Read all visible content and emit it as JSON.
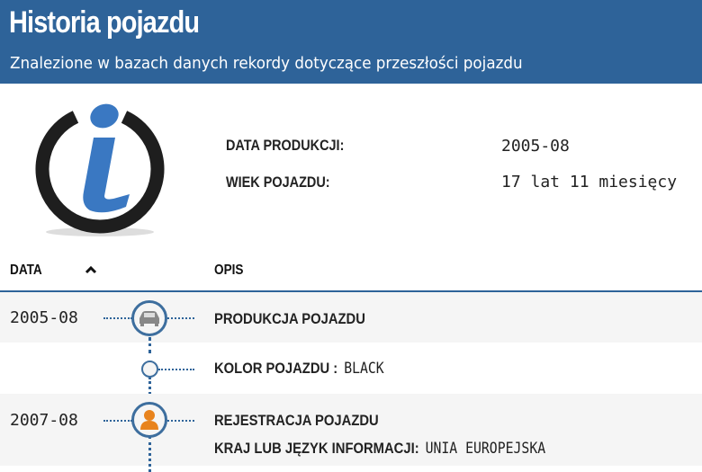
{
  "header": {
    "title": "Historia pojazdu",
    "subtitle": "Znalezione w bazach danych rekordy dotyczące przeszłości pojazdu"
  },
  "summary": [
    {
      "label": "DATA PRODUKCJI:",
      "value": "2005-08"
    },
    {
      "label": "WIEK POJAZDU:",
      "value": "17 lat 11 miesięcy"
    }
  ],
  "table": {
    "columns": [
      "DATA",
      "OPIS"
    ],
    "sort": "ascending",
    "rows": [
      {
        "date": "2005-08",
        "icon": "car-icon",
        "title": "PRODUKCJA POJAZDU"
      },
      {
        "date": "",
        "icon": "dot",
        "label": "KOLOR POJAZDU :",
        "value": "BLACK"
      },
      {
        "date": "2007-08",
        "icon": "person-icon",
        "title": "REJESTRACJA POJAZDU",
        "label": "KRAJ LUB JĘZYK INFORMACJI:",
        "value": "UNIA EUROPEJSKA"
      }
    ]
  },
  "colors": {
    "brand": "#2e6399",
    "accent": "#e8831d"
  }
}
